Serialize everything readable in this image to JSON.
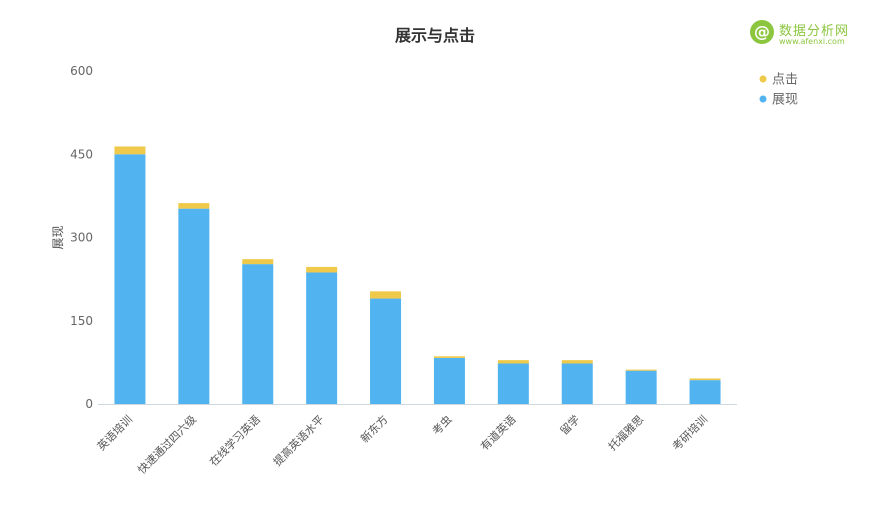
{
  "chart_data": {
    "type": "bar",
    "stacked": true,
    "title": "展示与点击",
    "xlabel": "",
    "ylabel": "展现",
    "ylim": [
      0,
      600
    ],
    "yticks": [
      0,
      150,
      300,
      450,
      600
    ],
    "grid": false,
    "legend_position": "top-right",
    "categories": [
      "英语培训",
      "快速通过四六级",
      "在线学习英语",
      "提高英语水平",
      "新东方",
      "考虫",
      "有道英语",
      "留学",
      "托福雅思",
      "考研培训"
    ],
    "series": [
      {
        "name": "展现",
        "color": "#51b4f0",
        "values": [
          450,
          352,
          252,
          237,
          190,
          83,
          73,
          73,
          60,
          43
        ]
      },
      {
        "name": "点击",
        "color": "#eec94a",
        "values": [
          14,
          10,
          9,
          10,
          13,
          3,
          6,
          6,
          2,
          3
        ]
      }
    ]
  },
  "watermark": {
    "name": "数据分析网",
    "url": "www.afenxi.com"
  }
}
